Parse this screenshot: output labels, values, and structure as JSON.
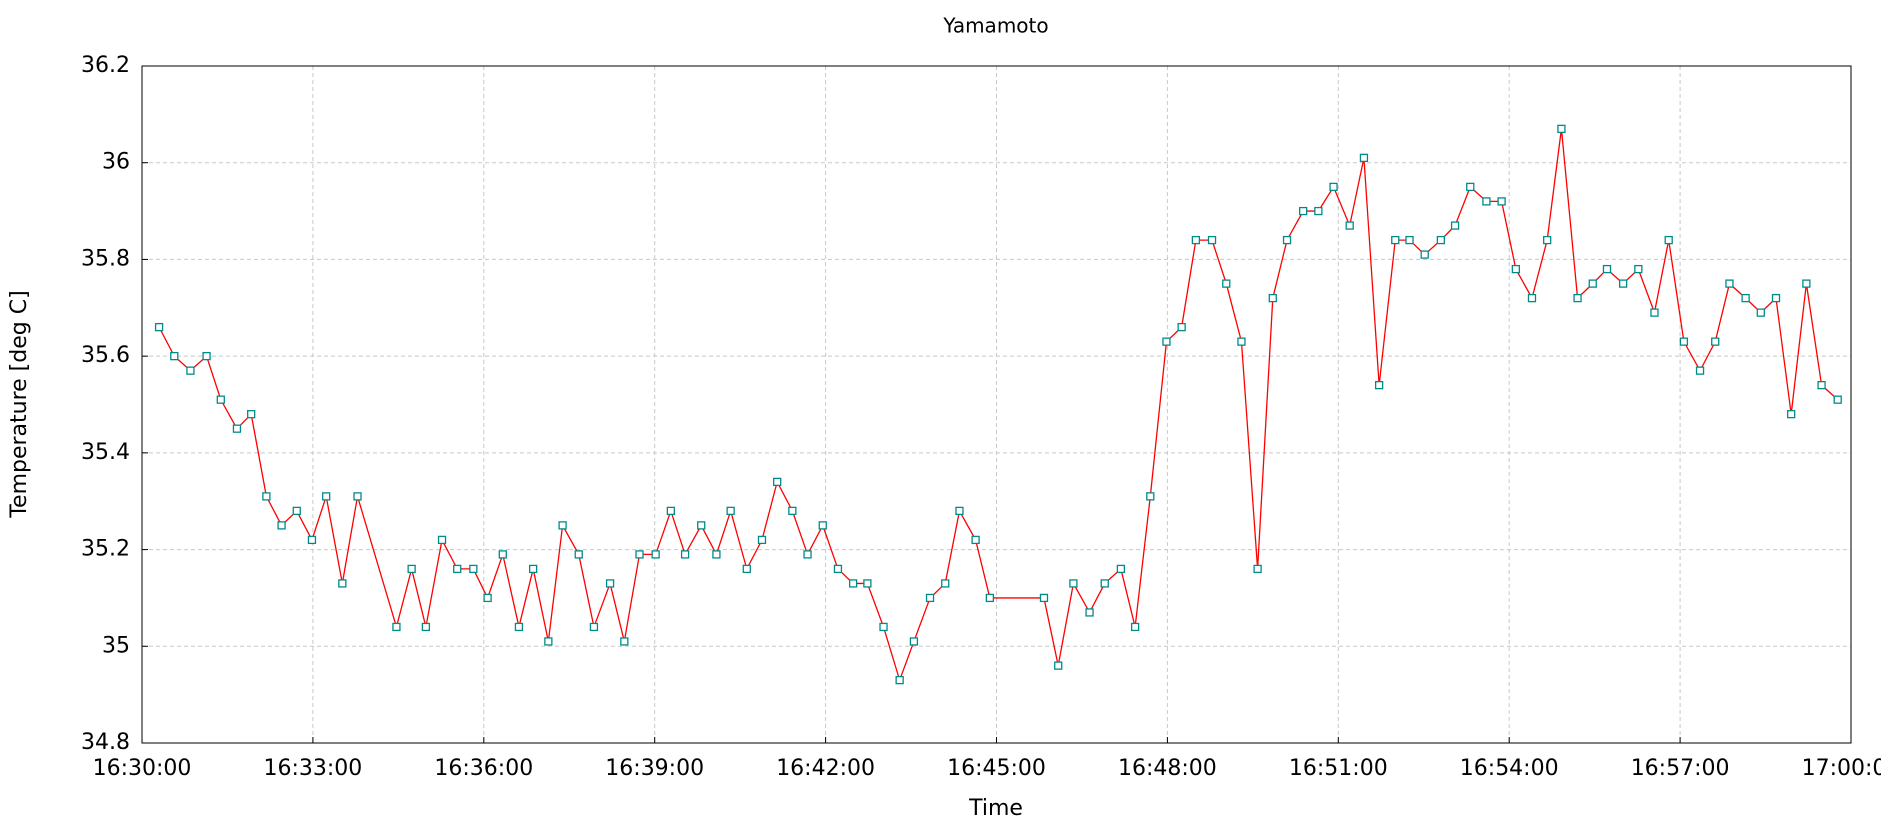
{
  "chart_data": {
    "type": "line",
    "title": "Yamamoto",
    "xlabel": "Time",
    "ylabel": "Temperature [deg C]",
    "x": [
      "16:30:18",
      "16:30:34",
      "16:30:51",
      "16:31:08",
      "16:31:23",
      "16:31:40",
      "16:31:55",
      "16:32:11",
      "16:32:27",
      "16:32:43",
      "16:32:59",
      "16:33:14",
      "16:33:31",
      "16:33:47",
      "16:34:28",
      "16:34:44",
      "16:34:59",
      "16:35:16",
      "16:35:32",
      "16:35:49",
      "16:36:04",
      "16:36:20",
      "16:36:37",
      "16:36:52",
      "16:37:08",
      "16:37:23",
      "16:37:40",
      "16:37:56",
      "16:38:13",
      "16:38:28",
      "16:38:44",
      "16:39:01",
      "16:39:17",
      "16:39:32",
      "16:39:49",
      "16:40:05",
      "16:40:20",
      "16:40:37",
      "16:40:53",
      "16:41:09",
      "16:41:25",
      "16:41:41",
      "16:41:57",
      "16:42:13",
      "16:42:29",
      "16:42:44",
      "16:43:01",
      "16:43:18",
      "16:43:33",
      "16:43:50",
      "16:44:06",
      "16:44:21",
      "16:44:38",
      "16:44:53",
      "16:45:50",
      "16:46:05",
      "16:46:21",
      "16:46:38",
      "16:46:54",
      "16:47:11",
      "16:47:26",
      "16:47:42",
      "16:47:59",
      "16:48:15",
      "16:48:30",
      "16:48:47",
      "16:49:02",
      "16:49:18",
      "16:49:35",
      "16:49:51",
      "16:50:06",
      "16:50:23",
      "16:50:39",
      "16:50:55",
      "16:51:12",
      "16:51:27",
      "16:51:43",
      "16:52:00",
      "16:52:15",
      "16:52:31",
      "16:52:48",
      "16:53:03",
      "16:53:19",
      "16:53:36",
      "16:53:52",
      "16:54:07",
      "16:54:24",
      "16:54:40",
      "16:54:55",
      "16:55:12",
      "16:55:28",
      "16:55:43",
      "16:56:00",
      "16:56:16",
      "16:56:33",
      "16:56:48",
      "16:57:04",
      "16:57:21",
      "16:57:37",
      "16:57:52",
      "16:58:09",
      "16:58:25",
      "16:58:41",
      "16:58:57",
      "16:59:13",
      "16:59:29",
      "16:59:46"
    ],
    "values": [
      35.66,
      35.6,
      35.57,
      35.6,
      35.51,
      35.45,
      35.48,
      35.31,
      35.25,
      35.28,
      35.22,
      35.31,
      35.13,
      35.31,
      35.04,
      35.16,
      35.04,
      35.22,
      35.16,
      35.16,
      35.1,
      35.19,
      35.04,
      35.16,
      35.01,
      35.25,
      35.19,
      35.04,
      35.13,
      35.01,
      35.19,
      35.19,
      35.28,
      35.19,
      35.25,
      35.19,
      35.28,
      35.16,
      35.22,
      35.34,
      35.28,
      35.19,
      35.25,
      35.16,
      35.13,
      35.13,
      35.04,
      34.93,
      35.01,
      35.1,
      35.13,
      35.28,
      35.22,
      35.1,
      35.1,
      34.96,
      35.13,
      35.07,
      35.13,
      35.16,
      35.04,
      35.31,
      35.63,
      35.66,
      35.84,
      35.84,
      35.75,
      35.63,
      35.16,
      35.72,
      35.84,
      35.9,
      35.9,
      35.95,
      35.87,
      36.01,
      35.54,
      35.84,
      35.84,
      35.81,
      35.84,
      35.87,
      35.95,
      35.92,
      35.92,
      35.78,
      35.72,
      35.84,
      36.07,
      35.72,
      35.75,
      35.78,
      35.75,
      35.78,
      35.69,
      35.84,
      35.63,
      35.57,
      35.63,
      35.75,
      35.72,
      35.69,
      35.72,
      35.48,
      35.75,
      35.54,
      35.51
    ],
    "color": "#ff0000",
    "marker_color": "#008b8b",
    "xlim": [
      "16:30:00",
      "17:00:00"
    ],
    "xticks": [
      "16:30:00",
      "16:33:00",
      "16:36:00",
      "16:39:00",
      "16:42:00",
      "16:45:00",
      "16:48:00",
      "16:51:00",
      "16:54:00",
      "16:57:00",
      "17:00:00"
    ],
    "ylim": [
      34.8,
      36.2
    ],
    "yticks": [
      34.8,
      35,
      35.2,
      35.4,
      35.6,
      35.8,
      36,
      36.2
    ],
    "grid": true
  }
}
